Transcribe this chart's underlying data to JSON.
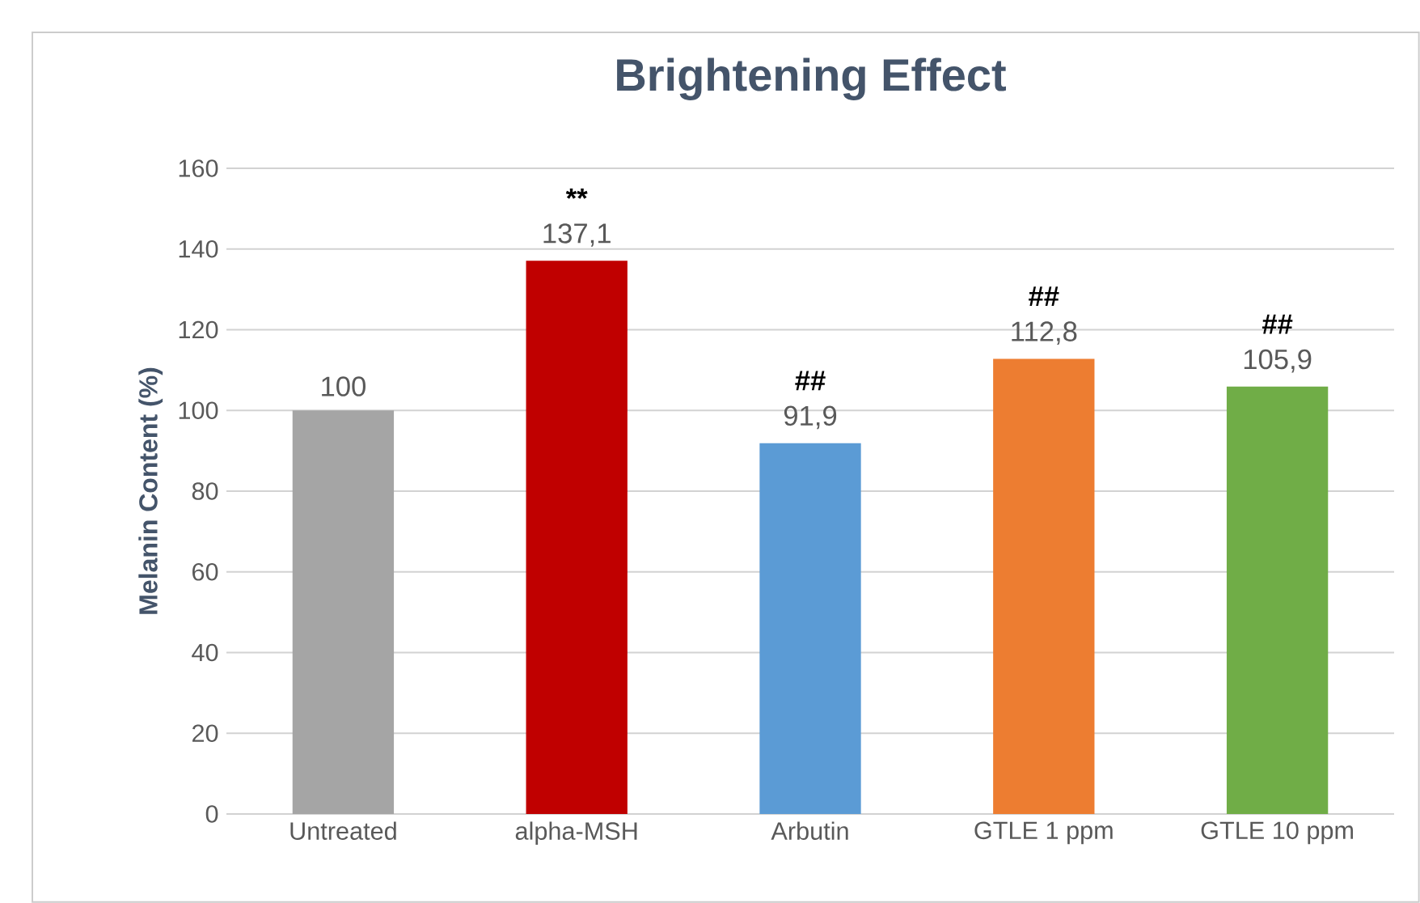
{
  "chart_data": {
    "type": "bar",
    "title": "Brightening Effect",
    "ylabel": "Melanin Content (%)",
    "categories": [
      "Untreated",
      "alpha-MSH",
      "Arbutin",
      "GTLE 1 ppm",
      "GTLE 10 ppm"
    ],
    "values": [
      100,
      137.1,
      91.9,
      112.8,
      105.9
    ],
    "colors": [
      "#a5a5a5",
      "#c00000",
      "#5b9bd5",
      "#ed7d31",
      "#70ad47"
    ],
    "value_labels": [
      "100",
      "137,1",
      "91,9",
      "112,8",
      "105,9"
    ],
    "ylim": [
      0,
      160
    ],
    "yticks": [
      0,
      20,
      40,
      60,
      80,
      100,
      120,
      140,
      160
    ],
    "grid": "y",
    "annotations": [
      {
        "text": "**",
        "x": "alpha-MSH",
        "y": 137.1
      },
      {
        "text": "##",
        "x": "Arbutin",
        "y": 91.9
      },
      {
        "text": "##",
        "x": "GTLE 1 ppm",
        "y": 112.8
      },
      {
        "text": "##",
        "x": "GTLE 10 ppm",
        "y": 105.9
      }
    ]
  }
}
